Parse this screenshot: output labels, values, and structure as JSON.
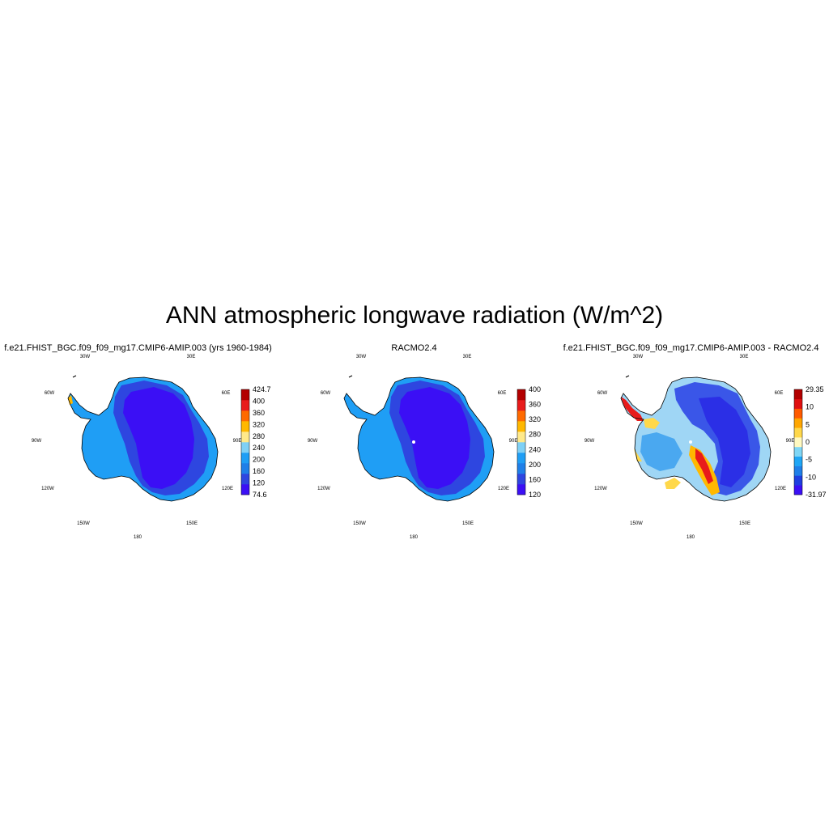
{
  "title": "ANN atmospheric longwave radiation (W/m^2)",
  "map_labels": [
    "30W",
    "30E",
    "60W",
    "60E",
    "90W",
    "90E",
    "120W",
    "120E",
    "150W",
    "150E",
    "180"
  ],
  "panels": [
    {
      "title": "f.e21.FHIST_BGC.f09_f09_mg17.CMIP6-AMIP.003 (yrs 1960-1984)",
      "scheme": "abs",
      "colorbar": {
        "colors": [
          "#3b0ff5",
          "#2e46e0",
          "#1f7fe8",
          "#1f9ef5",
          "#7fd0f5",
          "#ffe98a",
          "#ffb800",
          "#ff6a00",
          "#e81b1b",
          "#b30000"
        ],
        "labels": [
          "74.6",
          "120",
          "160",
          "200",
          "240",
          "280",
          "320",
          "360",
          "400",
          "424.7"
        ]
      }
    },
    {
      "title": "RACMO2.4",
      "scheme": "abs2",
      "colorbar": {
        "colors": [
          "#3b0ff5",
          "#2e46e0",
          "#1f7fe8",
          "#1f9ef5",
          "#7fd0f5",
          "#ffe98a",
          "#ffb800",
          "#ff6a00",
          "#e81b1b",
          "#b30000"
        ],
        "labels": [
          "120",
          "160",
          "200",
          "240",
          "280",
          "320",
          "360",
          "400"
        ]
      }
    },
    {
      "title": "f.e21.FHIST_BGC.f09_f09_mg17.CMIP6-AMIP.003 - RACMO2.4",
      "scheme": "diff",
      "colorbar": {
        "colors": [
          "#3b0ff5",
          "#1f3fe0",
          "#1f7fe8",
          "#1fa6f5",
          "#7fd6f5",
          "#fff9c0",
          "#ffd84a",
          "#ffa600",
          "#ff5a00",
          "#e01010",
          "#b30000"
        ],
        "labels": [
          "-31.97",
          "-10",
          "-5",
          "0",
          "5",
          "10",
          "29.35"
        ]
      }
    }
  ]
}
